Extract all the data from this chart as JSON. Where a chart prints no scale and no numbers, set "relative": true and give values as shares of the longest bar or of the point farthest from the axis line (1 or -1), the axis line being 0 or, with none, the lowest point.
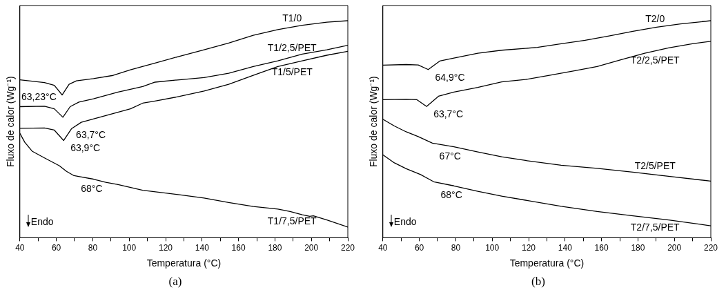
{
  "chart_data": [
    {
      "type": "line",
      "title": "(a)",
      "xlabel": "Temperatura (°C)",
      "ylabel": "Fluxo de calor (Wg⁻¹)",
      "relative": true,
      "legend": false,
      "grid": false,
      "marker": "none",
      "line_style": "solid",
      "xlim": [
        40,
        220
      ],
      "xticks": [
        40,
        {
          "value": 50,
          "label": null
        },
        60,
        {
          "value": 70,
          "label": null
        },
        80,
        {
          "value": 90,
          "label": null
        },
        100,
        {
          "value": 110,
          "label": null
        },
        120,
        {
          "value": 130,
          "label": null
        },
        140,
        {
          "value": 150,
          "label": null
        },
        160,
        {
          "value": 170,
          "label": null
        },
        180,
        {
          "value": 190,
          "label": null
        },
        200,
        {
          "value": 210,
          "label": null
        },
        220
      ],
      "series": [
        {
          "name": "T1/0",
          "color": "#000000",
          "x": [
            40,
            53.5,
            58.9,
            63.2,
            67,
            71,
            80.4,
            91.2,
            100.7,
            114.2,
            127.6,
            141.1,
            154.6,
            168.1,
            181.6,
            195,
            208.5,
            220
          ],
          "values": [
            0.728,
            0.715,
            0.702,
            0.658,
            0.707,
            0.723,
            0.733,
            0.748,
            0.774,
            0.805,
            0.836,
            0.866,
            0.897,
            0.933,
            0.959,
            0.979,
            0.993,
            1
          ]
        },
        {
          "name": "T1/2,5/PET",
          "color": "#000000",
          "x": [
            40,
            53.5,
            58.9,
            63.6,
            67.6,
            72.4,
            80.4,
            93.9,
            107.4,
            114.2,
            127.6,
            141.1,
            154.6,
            168.1,
            181.6,
            195,
            208.5,
            220
          ],
          "values": [
            0.604,
            0.606,
            0.594,
            0.555,
            0.604,
            0.625,
            0.64,
            0.671,
            0.697,
            0.717,
            0.728,
            0.738,
            0.758,
            0.789,
            0.815,
            0.846,
            0.866,
            0.887
          ]
        },
        {
          "name": "T1/5/PET",
          "color": "#000000",
          "x": [
            40,
            53.5,
            58.9,
            64,
            68.3,
            73.7,
            87.2,
            100.7,
            107.4,
            114.2,
            127.6,
            141.1,
            154.6,
            168.1,
            181.6,
            195,
            208.5,
            220
          ],
          "values": [
            0.504,
            0.506,
            0.496,
            0.448,
            0.502,
            0.532,
            0.563,
            0.594,
            0.62,
            0.63,
            0.651,
            0.676,
            0.707,
            0.748,
            0.789,
            0.815,
            0.841,
            0.859
          ]
        },
        {
          "name": "T1/7,5/PET",
          "color": "#000000",
          "x": [
            40,
            42.7,
            46.7,
            53.5,
            61.6,
            65.6,
            69.7,
            80.4,
            87.2,
            93.9,
            107.4,
            127.6,
            141.1,
            154.6,
            168.1,
            181.6,
            188.3,
            195,
            199.1,
            201.1,
            208.5,
            220
          ],
          "values": [
            0.481,
            0.44,
            0.399,
            0.368,
            0.332,
            0.306,
            0.286,
            0.27,
            0.255,
            0.245,
            0.219,
            0.198,
            0.183,
            0.162,
            0.144,
            0.132,
            0.121,
            0.106,
            0.099,
            0.101,
            0.082,
            0.049
          ]
        }
      ],
      "annotations": [
        {
          "text": "63,23°C",
          "x": 63.2,
          "y": 0.658
        },
        {
          "text": "63,7°C",
          "x": 63.6,
          "y": 0.555
        },
        {
          "text": "63,9°C",
          "x": 64,
          "y": 0.448
        },
        {
          "text": "68°C",
          "x": 69.7,
          "y": 0.286
        },
        "Endo"
      ]
    },
    {
      "type": "line",
      "title": "(b)",
      "xlabel": "Temperatura (°C)",
      "ylabel": "Fluxo de calor (Wg⁻¹)",
      "relative": true,
      "legend": false,
      "grid": false,
      "marker": "none",
      "line_style": "solid",
      "xlim": [
        40,
        220
      ],
      "xticks": [
        40,
        {
          "value": 50,
          "label": null
        },
        60,
        {
          "value": 70,
          "label": null
        },
        80,
        {
          "value": 90,
          "label": null
        },
        100,
        {
          "value": 110,
          "label": null
        },
        120,
        {
          "value": 130,
          "label": null
        },
        140,
        {
          "value": 150,
          "label": null
        },
        160,
        {
          "value": 170,
          "label": null
        },
        180,
        {
          "value": 190,
          "label": null
        },
        200,
        {
          "value": 210,
          "label": null
        },
        220
      ],
      "series": [
        {
          "name": "T2/0",
          "color": "#000000",
          "x": [
            40,
            52.8,
            59.4,
            64.9,
            71.2,
            79,
            92.1,
            105.2,
            124.8,
            137.9,
            151,
            164.1,
            177.2,
            190.3,
            203.4,
            220
          ],
          "values": [
            0.795,
            0.798,
            0.796,
            0.775,
            0.814,
            0.828,
            0.85,
            0.864,
            0.877,
            0.894,
            0.91,
            0.93,
            0.951,
            0.97,
            0.985,
            1
          ]
        },
        {
          "name": "T2/2,5/PET",
          "color": "#000000",
          "x": [
            40,
            52.8,
            58.7,
            64,
            70.5,
            79,
            92.1,
            105.2,
            118.3,
            131.4,
            144.5,
            157.6,
            170.6,
            183.7,
            196.8,
            209.9,
            220
          ],
          "values": [
            0.636,
            0.638,
            0.636,
            0.605,
            0.652,
            0.671,
            0.693,
            0.718,
            0.729,
            0.748,
            0.768,
            0.789,
            0.82,
            0.85,
            0.875,
            0.894,
            0.905
          ]
        },
        {
          "name": "T2/5/PET",
          "color": "#000000",
          "x": [
            40,
            46.3,
            52.8,
            59.4,
            67.2,
            79,
            92.1,
            105.2,
            118.3,
            137.9,
            157.6,
            177.2,
            196.8,
            220
          ],
          "values": [
            0.546,
            0.515,
            0.488,
            0.466,
            0.436,
            0.419,
            0.395,
            0.373,
            0.356,
            0.334,
            0.32,
            0.302,
            0.283,
            0.261
          ]
        },
        {
          "name": "T2/7,5/PET",
          "color": "#000000",
          "x": [
            40,
            46.3,
            52.8,
            60.7,
            67.9,
            79,
            92.1,
            105.2,
            118.3,
            137.9,
            157.6,
            177.2,
            196.8,
            220
          ],
          "values": [
            0.382,
            0.345,
            0.318,
            0.291,
            0.258,
            0.239,
            0.214,
            0.192,
            0.173,
            0.145,
            0.121,
            0.101,
            0.082,
            0.055
          ]
        }
      ],
      "annotations": [
        {
          "text": "64,9°C",
          "x": 64.9,
          "y": 0.775
        },
        {
          "text": "63,7°C",
          "x": 64,
          "y": 0.605
        },
        {
          "text": "67°C",
          "x": 67.2,
          "y": 0.436
        },
        {
          "text": "68°C",
          "x": 67.9,
          "y": 0.258
        },
        "Endo"
      ]
    }
  ]
}
